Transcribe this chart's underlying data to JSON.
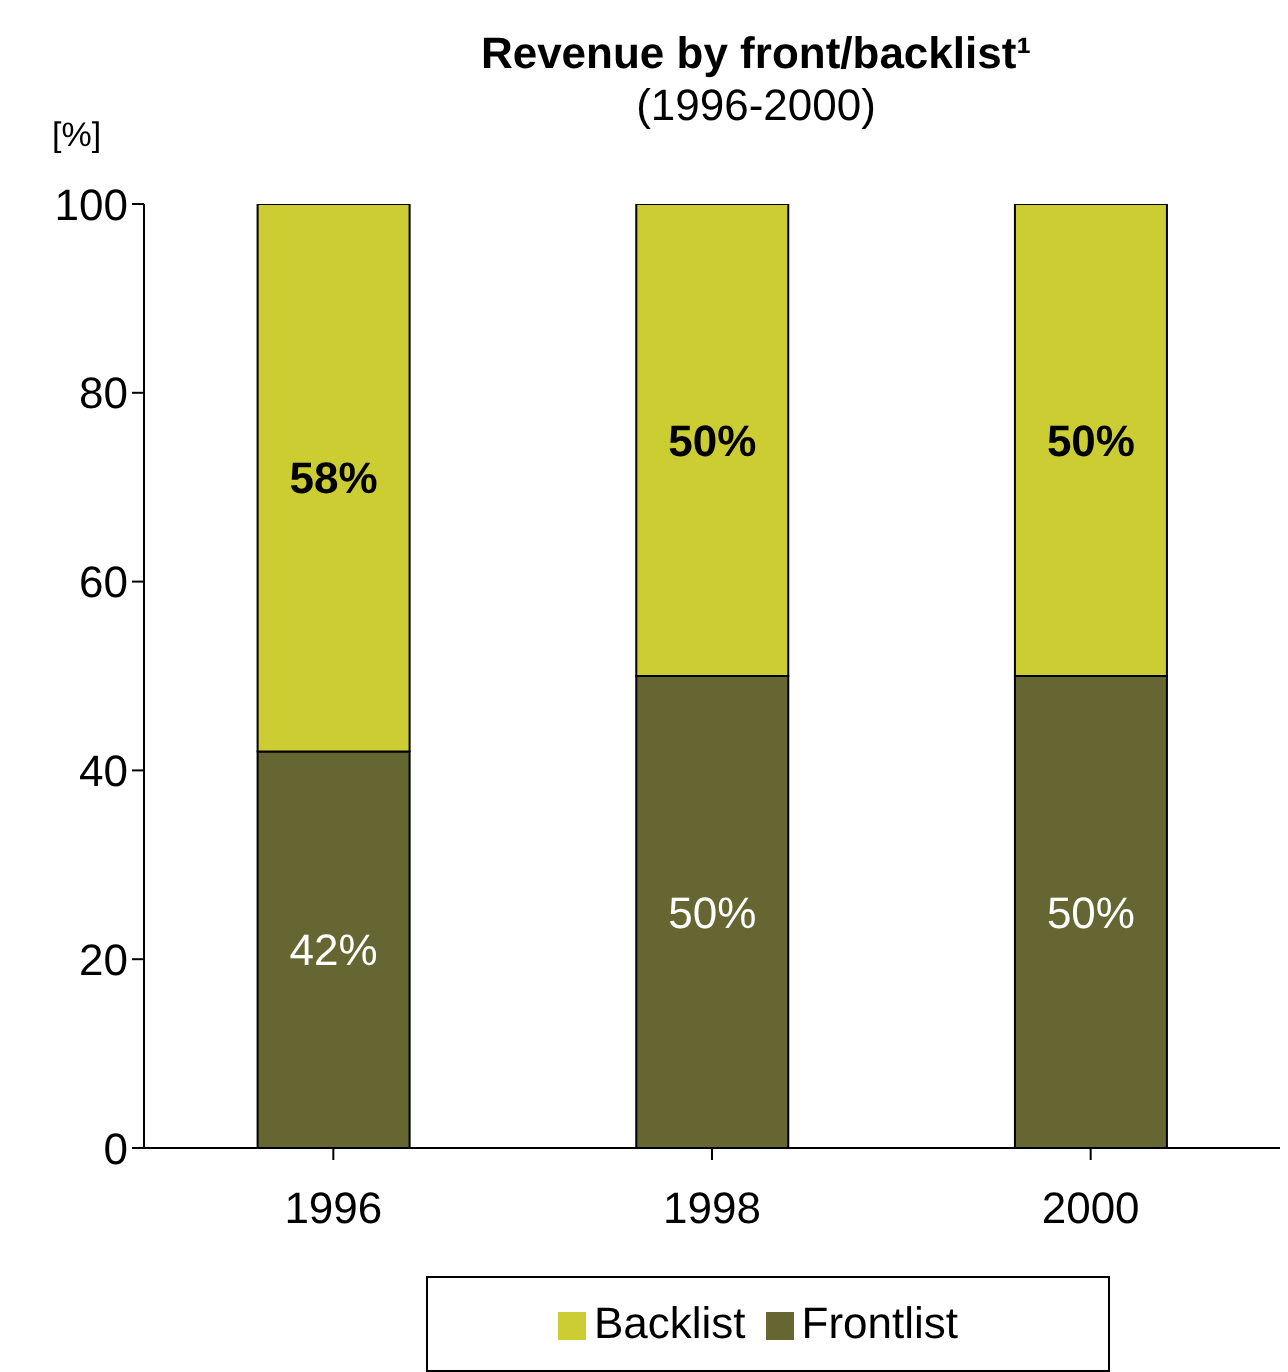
{
  "chart_data": {
    "type": "bar",
    "title": "Revenue by front/backlist¹",
    "subtitle": "(1996-2000)",
    "ylabel": "[%]",
    "categories": [
      "1996",
      "1998",
      "2000"
    ],
    "stacked": true,
    "ylim": [
      0,
      100
    ],
    "yticks": [
      0,
      20,
      40,
      60,
      80,
      100
    ],
    "grid": false,
    "legend": "bottom",
    "series": [
      {
        "name": "Frontlist",
        "color": "#666633",
        "values": [
          42,
          50,
          50
        ],
        "value_labels": [
          "42%",
          "50%",
          "50%"
        ]
      },
      {
        "name": "Backlist",
        "color": "#cccc33",
        "values": [
          58,
          50,
          50
        ],
        "value_labels": [
          "58%",
          "50%",
          "50%"
        ]
      }
    ]
  }
}
